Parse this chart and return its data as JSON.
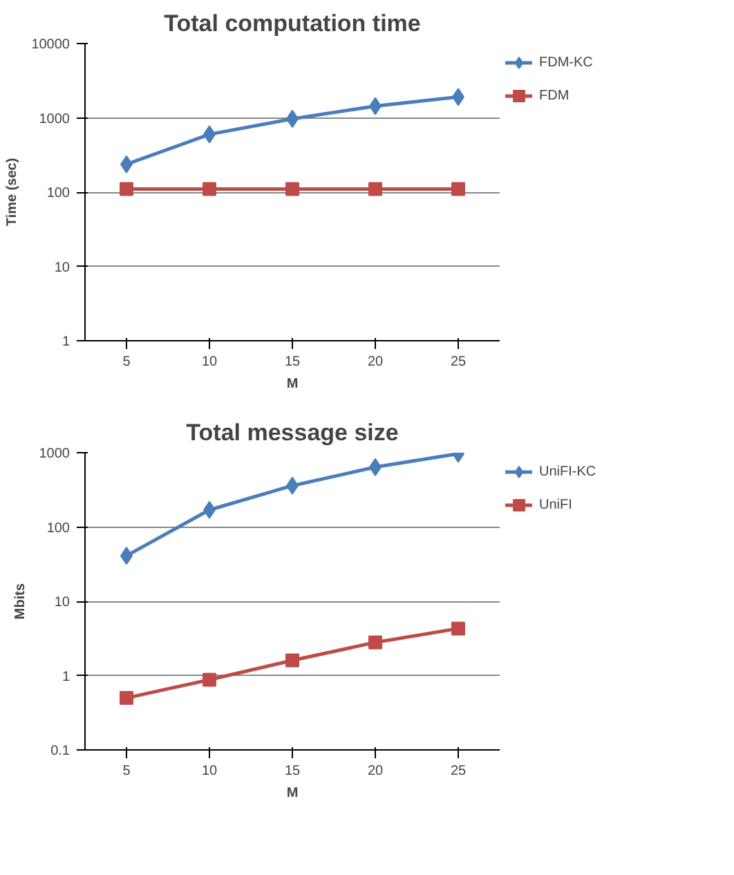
{
  "chart_data": [
    {
      "type": "line",
      "title": "Total computation time",
      "xlabel": "M",
      "ylabel": "Time (sec)",
      "categories": [
        "5",
        "10",
        "15",
        "20",
        "25"
      ],
      "log": "y",
      "ylim": [
        1,
        10000
      ],
      "yticks": [
        1,
        10,
        100,
        1000,
        10000
      ],
      "grid": "y",
      "legend": "right",
      "series": [
        {
          "name": "FDM-KC",
          "color": "#4a7ebb",
          "marker": "diamond",
          "values": [
            237,
            600,
            970,
            1440,
            1910
          ]
        },
        {
          "name": "FDM",
          "color": "#be4b48",
          "marker": "square",
          "values": [
            110,
            110,
            110,
            110,
            110
          ]
        }
      ]
    },
    {
      "type": "line",
      "title": "Total message size",
      "xlabel": "M",
      "ylabel": "Mbits",
      "categories": [
        "5",
        "10",
        "15",
        "20",
        "25"
      ],
      "log": "y",
      "ylim": [
        0.1,
        1000
      ],
      "yticks": [
        0.1,
        1,
        10,
        100,
        1000
      ],
      "grid": "y",
      "legend": "right",
      "series": [
        {
          "name": "UniFI-KC",
          "color": "#4a7ebb",
          "marker": "diamond",
          "values": [
            41,
            170,
            360,
            640,
            970
          ]
        },
        {
          "name": "UniFI",
          "color": "#be4b48",
          "marker": "square",
          "values": [
            0.5,
            0.88,
            1.6,
            2.8,
            4.3
          ]
        }
      ]
    }
  ]
}
